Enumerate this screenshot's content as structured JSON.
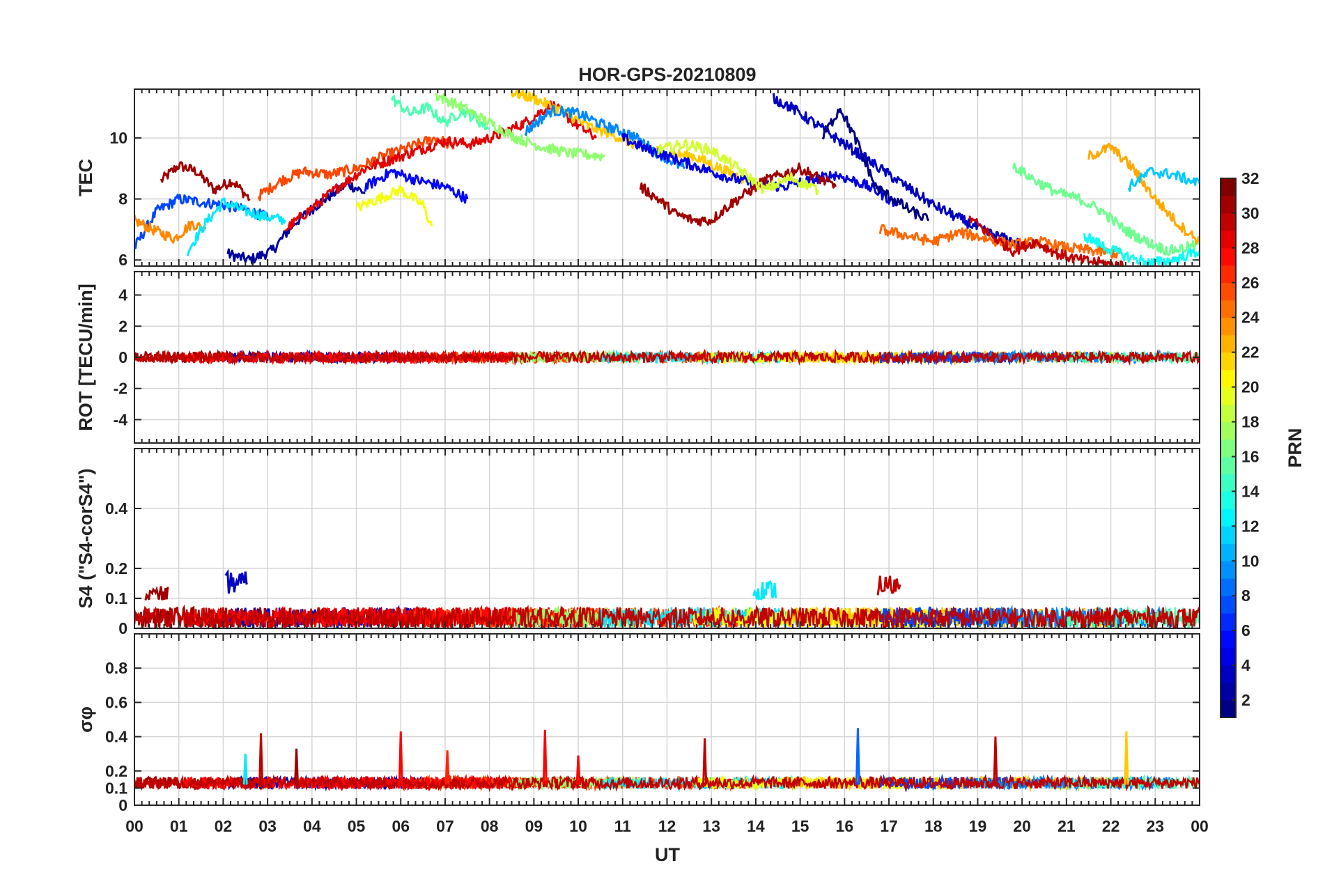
{
  "chart_data": {
    "type": "line",
    "title": "HOR-GPS-20210809",
    "xlabel": "UT",
    "x_tick_labels": [
      "00",
      "01",
      "02",
      "03",
      "04",
      "05",
      "06",
      "07",
      "08",
      "09",
      "10",
      "11",
      "12",
      "13",
      "14",
      "15",
      "16",
      "17",
      "18",
      "19",
      "20",
      "21",
      "22",
      "23",
      "00"
    ],
    "xlim": [
      0,
      24
    ],
    "grid": true,
    "colorbar": {
      "label": "PRN",
      "range": [
        1,
        32
      ],
      "ticks": [
        "2",
        "4",
        "6",
        "8",
        "10",
        "12",
        "14",
        "16",
        "18",
        "20",
        "22",
        "24",
        "26",
        "28",
        "30",
        "32"
      ],
      "colormap": "jet"
    },
    "panels": [
      {
        "ylabel": "TEC",
        "ylim": [
          5.8,
          11.6
        ],
        "y_ticks": [
          6,
          8,
          10
        ],
        "y_tick_labels": [
          "6",
          "8",
          "10"
        ],
        "series": [
          {
            "prn": 31,
            "x": [
              0.6,
              1.0,
              1.4,
              1.8,
              2.2,
              2.6
            ],
            "y": [
              8.6,
              9.1,
              8.9,
              8.3,
              8.6,
              8.0
            ]
          },
          {
            "prn": 2,
            "x": [
              2.1,
              2.6,
              3.1,
              3.6,
              4.2,
              4.8,
              5.2
            ],
            "y": [
              6.2,
              6.0,
              6.3,
              7.2,
              7.9,
              8.5,
              8.2
            ]
          },
          {
            "prn": 7,
            "x": [
              0.0,
              0.5,
              1.0,
              1.5,
              2.0,
              2.6,
              3.0
            ],
            "y": [
              6.4,
              7.6,
              8.0,
              7.9,
              7.8,
              7.6,
              7.4
            ]
          },
          {
            "prn": 24,
            "x": [
              0.0,
              0.4,
              0.9,
              1.3,
              1.6
            ],
            "y": [
              7.3,
              7.0,
              6.7,
              7.2,
              7.0
            ]
          },
          {
            "prn": 12,
            "x": [
              1.2,
              1.6,
              2.0,
              2.5,
              3.0,
              3.4
            ],
            "y": [
              6.3,
              7.2,
              7.9,
              7.6,
              7.4,
              7.3
            ]
          },
          {
            "prn": 26,
            "x": [
              2.8,
              3.3,
              3.8,
              4.4,
              5.0,
              5.6,
              6.2,
              6.8,
              7.2
            ],
            "y": [
              8.1,
              8.6,
              8.9,
              8.8,
              9.0,
              9.4,
              9.7,
              10.0,
              9.7
            ]
          },
          {
            "prn": 29,
            "x": [
              3.4,
              4.0,
              4.6,
              5.2,
              5.8,
              6.4,
              7.0,
              7.6,
              8.2,
              8.8,
              9.4,
              10.0,
              10.4
            ],
            "y": [
              7.0,
              7.7,
              8.4,
              9.0,
              9.3,
              9.6,
              9.9,
              9.8,
              10.1,
              10.5,
              11.1,
              10.4,
              10.0
            ]
          },
          {
            "prn": 5,
            "x": [
              5.2,
              5.8,
              6.4,
              7.0,
              7.5
            ],
            "y": [
              8.4,
              8.9,
              8.6,
              8.4,
              8.0
            ]
          },
          {
            "prn": 20,
            "x": [
              5.0,
              5.5,
              6.0,
              6.5,
              6.7
            ],
            "y": [
              7.7,
              8.0,
              8.3,
              7.8,
              7.1
            ]
          },
          {
            "prn": 15,
            "x": [
              5.8,
              6.2,
              6.6,
              7.0,
              7.4,
              8.0
            ],
            "y": [
              11.3,
              10.8,
              11.0,
              10.5,
              10.9,
              10.3
            ]
          },
          {
            "prn": 17,
            "x": [
              6.8,
              7.4,
              8.0,
              8.6,
              9.2,
              9.8,
              10.6
            ],
            "y": [
              11.4,
              11.0,
              10.5,
              10.0,
              9.7,
              9.5,
              9.4
            ]
          },
          {
            "prn": 22,
            "x": [
              8.5,
              9.0,
              9.6,
              10.2,
              10.8,
              11.4,
              12.0,
              12.6,
              13.2,
              13.8
            ],
            "y": [
              11.5,
              11.3,
              10.9,
              10.4,
              10.1,
              9.7,
              9.5,
              9.4,
              9.0,
              8.6
            ]
          },
          {
            "prn": 9,
            "x": [
              8.8,
              9.4,
              10.0,
              10.6,
              11.2,
              11.8,
              12.4
            ],
            "y": [
              10.2,
              10.9,
              10.8,
              10.4,
              10.1,
              9.5,
              9.0
            ]
          },
          {
            "prn": 4,
            "x": [
              11.0,
              11.6,
              12.2,
              12.8,
              13.4,
              14.0,
              14.6,
              15.2,
              15.8,
              16.4,
              16.8,
              17.2
            ],
            "y": [
              10.0,
              9.6,
              9.3,
              9.0,
              8.7,
              8.5,
              8.4,
              8.6,
              8.8,
              8.5,
              8.2,
              7.8
            ]
          },
          {
            "prn": 31,
            "x": [
              11.4,
              11.8,
              12.2,
              12.6,
              13.0,
              13.4,
              13.8,
              14.2,
              14.6,
              15.0,
              15.4,
              15.8
            ],
            "y": [
              8.4,
              8.0,
              7.5,
              7.3,
              7.3,
              7.8,
              8.2,
              8.6,
              8.8,
              9.0,
              8.7,
              8.4
            ]
          },
          {
            "prn": 19,
            "x": [
              11.8,
              12.4,
              13.0,
              13.6,
              14.2,
              14.8,
              15.4
            ],
            "y": [
              9.6,
              9.8,
              9.6,
              9.0,
              8.3,
              8.7,
              8.3
            ]
          },
          {
            "prn": 3,
            "x": [
              14.4,
              14.8,
              15.2,
              15.6,
              16.0,
              16.4,
              16.8,
              17.2,
              17.6,
              18.0,
              18.4,
              18.8,
              19.2,
              19.6,
              20.0
            ],
            "y": [
              11.3,
              11.0,
              10.6,
              10.2,
              9.8,
              9.4,
              9.0,
              8.6,
              8.2,
              7.8,
              7.5,
              7.2,
              6.9,
              6.7,
              6.5
            ]
          },
          {
            "prn": 1,
            "x": [
              15.5,
              15.9,
              16.3,
              16.7,
              17.1,
              17.5,
              17.9
            ],
            "y": [
              10.0,
              11.0,
              9.8,
              8.4,
              8.0,
              7.6,
              7.3
            ]
          },
          {
            "prn": 25,
            "x": [
              16.8,
              17.4,
              18.0,
              18.6,
              19.2,
              19.8,
              20.4,
              21.0,
              21.6,
              22.2
            ],
            "y": [
              7.0,
              6.8,
              6.6,
              6.9,
              6.7,
              6.5,
              6.6,
              6.4,
              6.3,
              6.2
            ]
          },
          {
            "prn": 30,
            "x": [
              18.8,
              19.3,
              19.8,
              20.3,
              20.8,
              21.3,
              21.8,
              22.3
            ],
            "y": [
              7.4,
              6.8,
              6.3,
              6.6,
              6.2,
              6.0,
              5.9,
              5.8
            ]
          },
          {
            "prn": 16,
            "x": [
              19.8,
              20.3,
              20.8,
              21.3,
              21.8,
              22.3,
              22.8,
              23.3,
              24.0
            ],
            "y": [
              9.1,
              8.6,
              8.2,
              8.0,
              7.6,
              7.0,
              6.6,
              6.3,
              6.5
            ]
          },
          {
            "prn": 23,
            "x": [
              21.5,
              22.0,
              22.5,
              23.0,
              23.5,
              24.0
            ],
            "y": [
              9.4,
              9.7,
              9.0,
              8.0,
              7.2,
              6.6
            ]
          },
          {
            "prn": 11,
            "x": [
              22.4,
              22.9,
              23.4,
              24.0
            ],
            "y": [
              8.4,
              8.9,
              8.8,
              8.5
            ]
          },
          {
            "prn": 13,
            "x": [
              21.4,
              21.9,
              22.4,
              22.9,
              23.4,
              24.0
            ],
            "y": [
              6.8,
              6.4,
              6.1,
              5.9,
              6.0,
              6.3
            ]
          }
        ]
      },
      {
        "ylabel": "ROT [TECU/min]",
        "ylim": [
          -5.5,
          5.5
        ],
        "y_ticks": [
          -4,
          -2,
          0,
          2,
          4
        ],
        "y_tick_labels": [
          "-4",
          "-2",
          "0",
          "2",
          "4"
        ],
        "series_note": "noise around 0 for all PRNs, |ROT| < 1.5"
      },
      {
        "ylabel": "S4 (\"S4-corS4\")",
        "ylim": [
          0,
          0.6
        ],
        "y_ticks": [
          0,
          0.1,
          0.2,
          0.4
        ],
        "y_tick_labels": [
          "0",
          "0.1",
          "0.2",
          "0.4"
        ],
        "peaks": [
          {
            "prn": 3,
            "x": 2.3,
            "y": 0.19
          },
          {
            "prn": 30,
            "x": 17.0,
            "y": 0.18
          },
          {
            "prn": 12,
            "x": 14.2,
            "y": 0.16
          },
          {
            "prn": 31,
            "x": 0.5,
            "y": 0.14
          }
        ]
      },
      {
        "ylabel": "σφ",
        "ylim": [
          0,
          1.0
        ],
        "y_ticks": [
          0,
          0.1,
          0.2,
          0.4,
          0.6,
          0.8
        ],
        "y_tick_labels": [
          "0",
          "0.1",
          "0.2",
          "0.4",
          "0.6",
          "0.8"
        ],
        "spikes": [
          {
            "prn": 30,
            "x": 2.85,
            "y": 0.42
          },
          {
            "prn": 31,
            "x": 3.65,
            "y": 0.33
          },
          {
            "prn": 28,
            "x": 6.0,
            "y": 0.43
          },
          {
            "prn": 27,
            "x": 7.05,
            "y": 0.32
          },
          {
            "prn": 28,
            "x": 9.25,
            "y": 0.44
          },
          {
            "prn": 28,
            "x": 10.0,
            "y": 0.29
          },
          {
            "prn": 30,
            "x": 12.85,
            "y": 0.39
          },
          {
            "prn": 8,
            "x": 16.3,
            "y": 0.45
          },
          {
            "prn": 30,
            "x": 19.4,
            "y": 0.4
          },
          {
            "prn": 22,
            "x": 22.35,
            "y": 0.43
          },
          {
            "prn": 12,
            "x": 2.5,
            "y": 0.3
          }
        ]
      }
    ]
  }
}
